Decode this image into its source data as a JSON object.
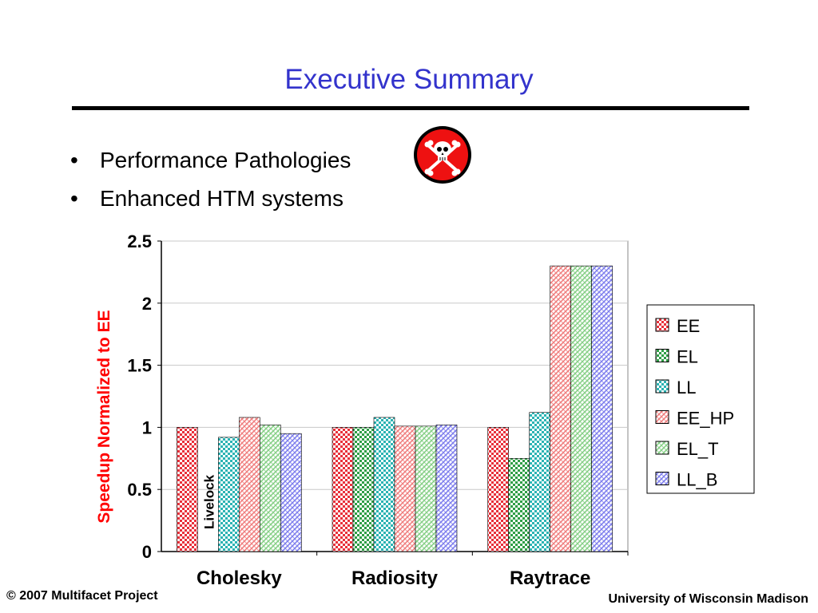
{
  "slide": {
    "title": "Executive Summary",
    "bullets": [
      {
        "text": "Performance Pathologies",
        "icon": "skull-crossbones-icon"
      },
      {
        "text": "Enhanced HTM systems"
      }
    ],
    "footer_left": "© 2007 Multifacet Project",
    "footer_right": "University of Wisconsin Madison"
  },
  "chart_data": {
    "type": "bar",
    "categories": [
      "Cholesky",
      "Radiosity",
      "Raytrace"
    ],
    "series": [
      {
        "name": "EE",
        "color": "#e8303a",
        "values": [
          1.0,
          1.0,
          1.0
        ]
      },
      {
        "name": "EL",
        "color": "#2f9e46",
        "values": [
          null,
          1.0,
          0.75
        ]
      },
      {
        "name": "LL",
        "color": "#2bb3b3",
        "values": [
          0.92,
          1.08,
          1.12
        ]
      },
      {
        "name": "EE_HP",
        "color": "#f08080",
        "values": [
          1.08,
          1.01,
          2.3
        ]
      },
      {
        "name": "EL_T",
        "color": "#88d088",
        "values": [
          1.02,
          1.01,
          2.3
        ]
      },
      {
        "name": "LL_B",
        "color": "#8080ee",
        "values": [
          0.95,
          1.02,
          2.3
        ]
      }
    ],
    "ylabel": "Speedup Normalized to EE",
    "xlabel": "",
    "ylim": [
      0,
      2.5
    ],
    "yticks": [
      0,
      0.5,
      1,
      1.5,
      2,
      2.5
    ],
    "ytick_labels": [
      "0",
      "0.5",
      "1",
      "1.5",
      "2",
      "2.5"
    ],
    "grid": true,
    "legend_position": "right",
    "annotations": [
      {
        "text": "Livelock",
        "category": "Cholesky",
        "series": "EL"
      }
    ],
    "colors": {
      "ylabel": "#ff0000",
      "title": "#3333cc"
    }
  }
}
